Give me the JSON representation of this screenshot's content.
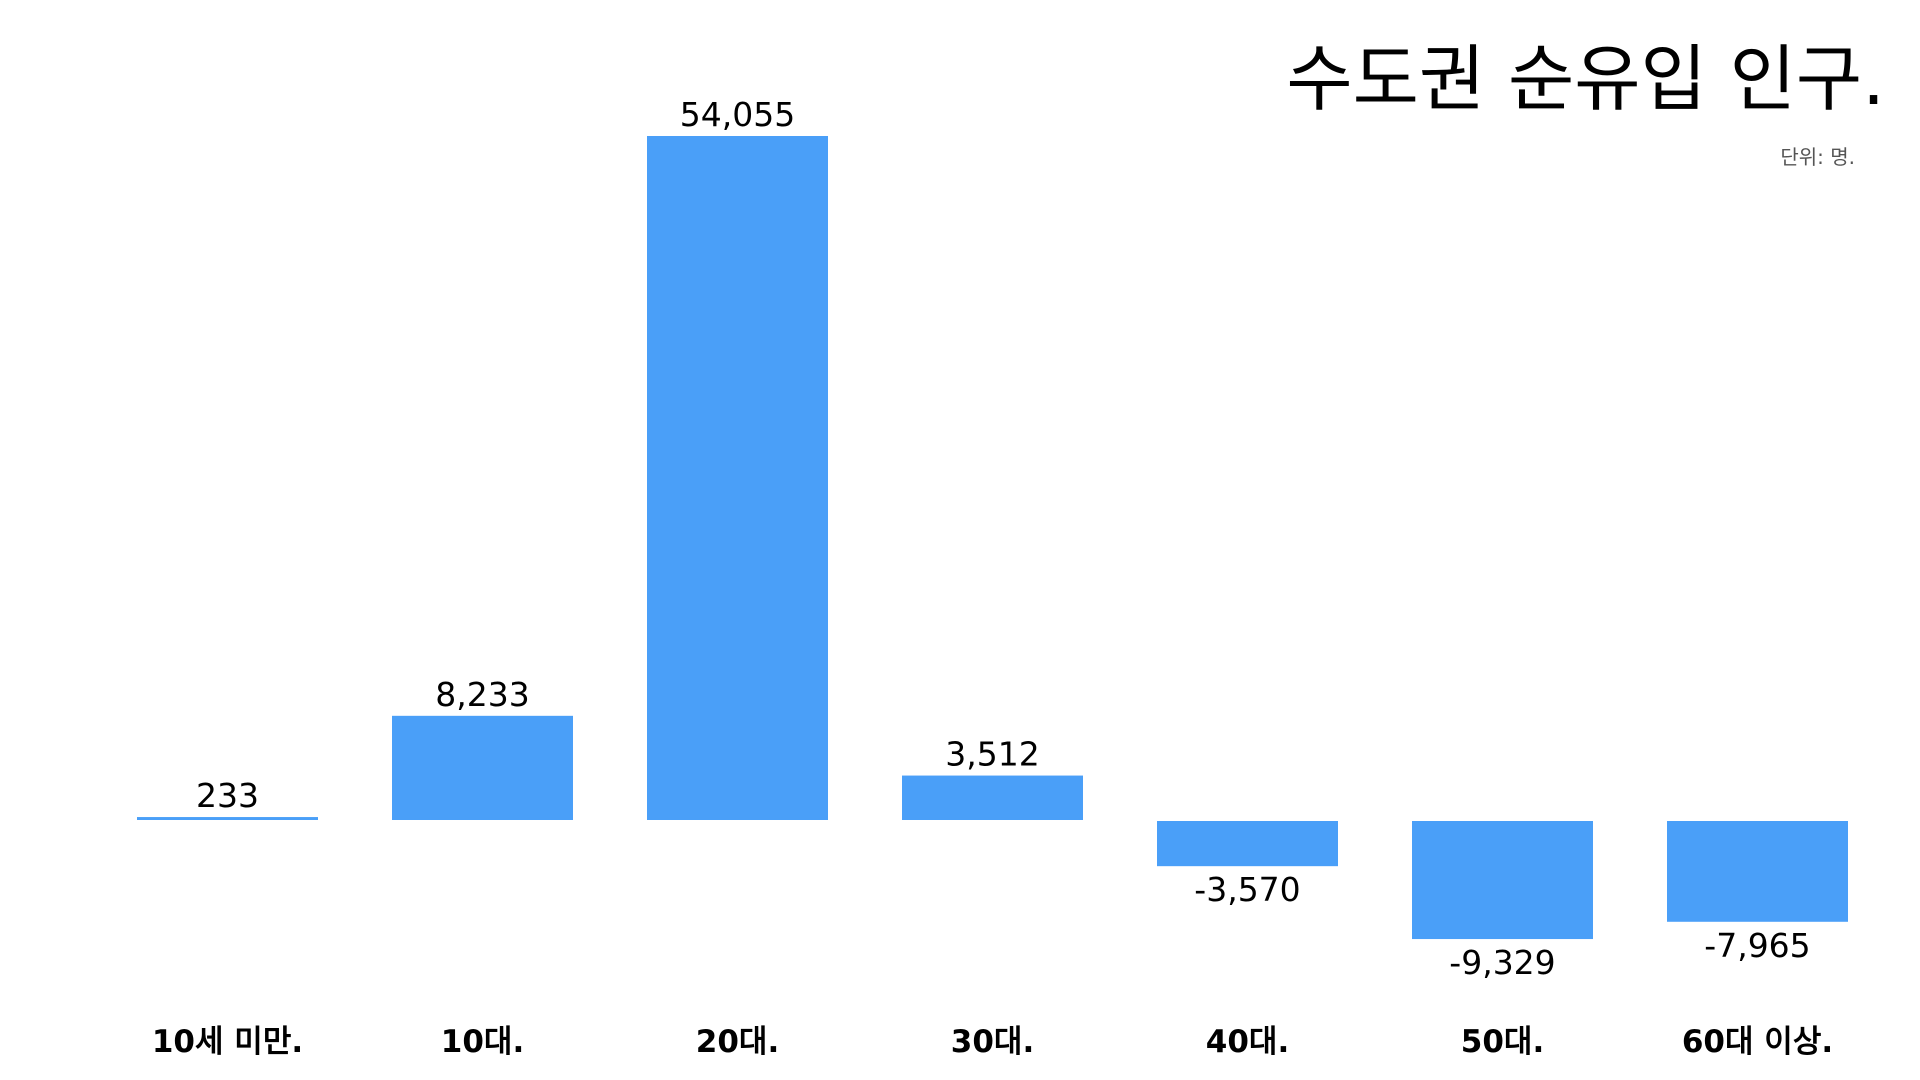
{
  "title": "수도권 순유입 인구.",
  "unit_label": "단위: 명.",
  "colors": {
    "bar": "#4a9ff8",
    "text": "#000000",
    "unit_text": "#555555",
    "background": "#ffffff"
  },
  "chart_data": {
    "type": "bar",
    "title": "수도권 순유입 인구.",
    "categories": [
      "10세 미만.",
      "10대.",
      "20대.",
      "30대.",
      "40대.",
      "50대.",
      "60대 이상."
    ],
    "values": [
      233,
      8233,
      54055,
      3512,
      -3570,
      -9329,
      -7965
    ],
    "value_labels": [
      "233",
      "8,233",
      "54,055",
      "3,512",
      "-3,570",
      "-9,329",
      "-7,965"
    ],
    "xlabel": "",
    "ylabel": "",
    "grid": false,
    "legend": "none"
  }
}
